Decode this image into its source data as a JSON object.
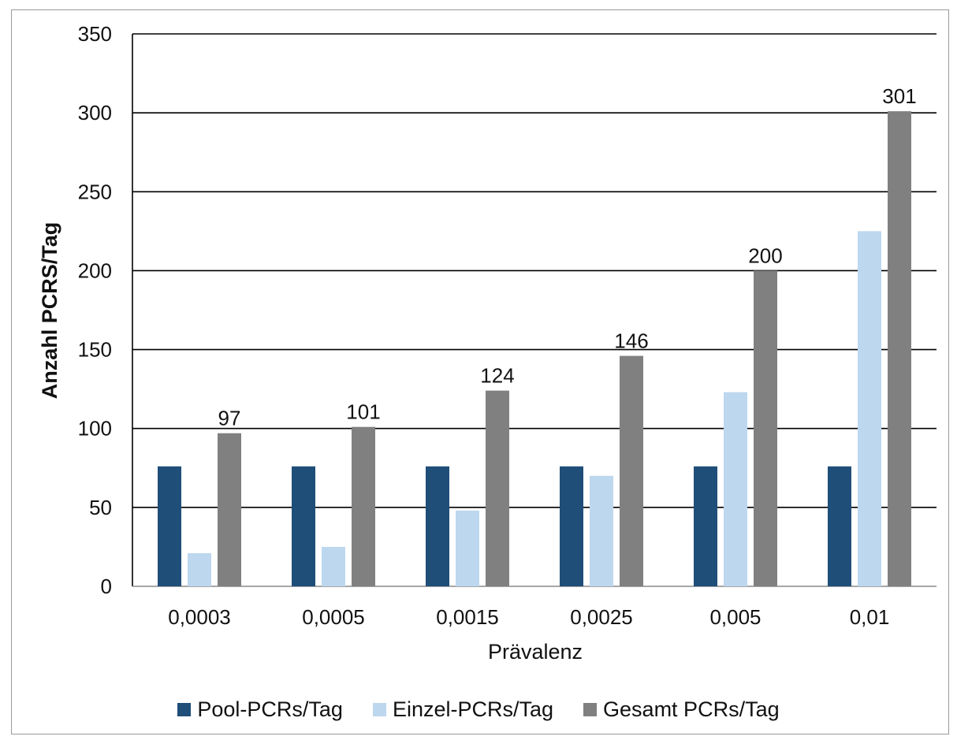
{
  "chart_data": {
    "type": "bar",
    "title": "",
    "xlabel": "Prävalenz",
    "ylabel": "Anzahl PCRS/Tag",
    "ylim": [
      0,
      350
    ],
    "yticks": [
      "0",
      "50",
      "100",
      "150",
      "200",
      "250",
      "300",
      "350"
    ],
    "ytick_values": [
      0,
      50,
      100,
      150,
      200,
      250,
      300,
      350
    ],
    "categories": [
      "0,0003",
      "0,0005",
      "0,0015",
      "0,0025",
      "0,005",
      "0,01"
    ],
    "series": [
      {
        "name": "Pool-PCRs/Tag",
        "color": "#1f4e79",
        "values": [
          76,
          76,
          76,
          76,
          76,
          76
        ]
      },
      {
        "name": "Einzel-PCRs/Tag",
        "color": "#bdd7ee",
        "values": [
          21,
          25,
          48,
          70,
          123,
          225
        ]
      },
      {
        "name": "Gesamt PCRs/Tag",
        "color": "#808080",
        "values": [
          97,
          101,
          124,
          146,
          200,
          301
        ]
      }
    ],
    "data_labels": [
      "97",
      "101",
      "124",
      "146",
      "200",
      "301"
    ],
    "grid": true,
    "legend_position": "bottom"
  }
}
